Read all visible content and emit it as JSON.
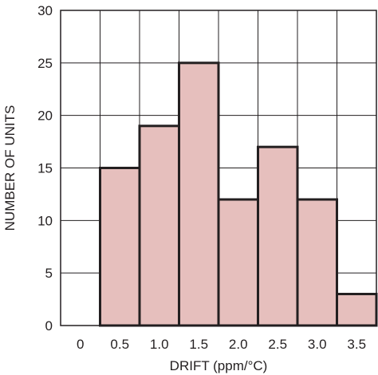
{
  "chart_data": {
    "type": "bar",
    "xlabel": "DRIFT (ppm/°C)",
    "ylabel": "NUMBER OF UNITS",
    "x_ticks": [
      "0",
      "0.5",
      "1.0",
      "1.5",
      "2.0",
      "2.5",
      "3.0",
      "3.5"
    ],
    "y_ticks": [
      "0",
      "5",
      "10",
      "15",
      "20",
      "25",
      "30"
    ],
    "ylim": [
      0,
      30
    ],
    "xlim": [
      0,
      3.5
    ],
    "bins": [
      {
        "start": 0.5,
        "end": 1.0,
        "value": 15
      },
      {
        "start": 1.0,
        "end": 1.5,
        "value": 19
      },
      {
        "start": 1.5,
        "end": 2.0,
        "value": 25
      },
      {
        "start": 2.0,
        "end": 2.5,
        "value": 12
      },
      {
        "start": 2.5,
        "end": 3.0,
        "value": 17
      },
      {
        "start": 3.0,
        "end": 3.5,
        "value": 12
      },
      {
        "start": 3.5,
        "end": 4.0,
        "value": 3
      }
    ],
    "grid": true,
    "bar_fill": "#e6bfbd",
    "bar_stroke": "#231f20",
    "grid_color": "#231f20"
  }
}
